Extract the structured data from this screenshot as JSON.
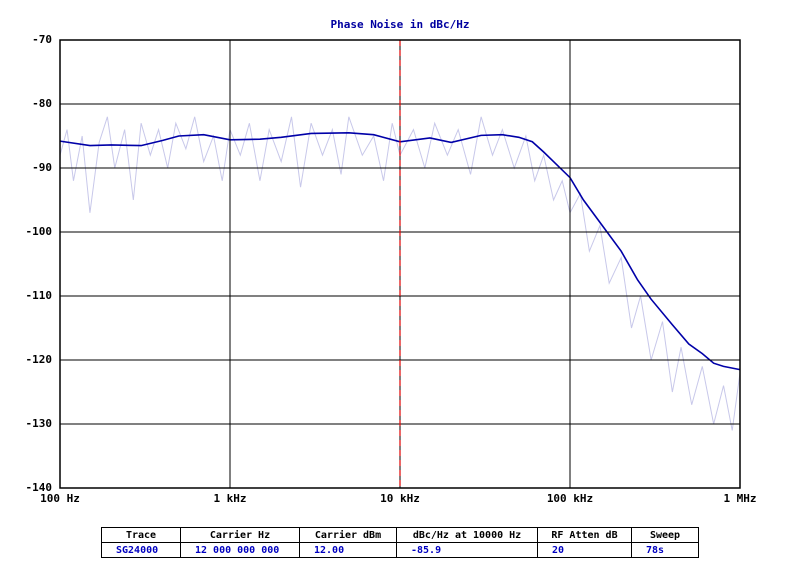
{
  "chart_data": {
    "type": "line",
    "title": "Phase Noise in dBc/Hz",
    "log_x": true,
    "grid": true,
    "xlim": [
      100,
      1000000
    ],
    "ylim": [
      -140,
      -70
    ],
    "xticks": [
      {
        "value": 100,
        "label": "100 Hz"
      },
      {
        "value": 1000,
        "label": "1 kHz"
      },
      {
        "value": 10000,
        "label": "10 kHz"
      },
      {
        "value": 100000,
        "label": "100 kHz"
      },
      {
        "value": 1000000,
        "label": "1 MHz"
      }
    ],
    "yticks": [
      -70,
      -80,
      -90,
      -100,
      -110,
      -120,
      -130,
      -140
    ],
    "marker_x": 10000,
    "marker_color": "#e00000",
    "series": [
      {
        "color": "#c8c8ea",
        "x": [
          100,
          110,
          120,
          135,
          150,
          170,
          190,
          210,
          240,
          270,
          300,
          340,
          380,
          430,
          480,
          550,
          620,
          700,
          800,
          900,
          1000,
          1150,
          1300,
          1500,
          1700,
          2000,
          2300,
          2600,
          3000,
          3500,
          4000,
          4500,
          5000,
          6000,
          7000,
          8000,
          9000,
          10000,
          12000,
          14000,
          16000,
          19000,
          22000,
          26000,
          30000,
          35000,
          40000,
          47000,
          55000,
          62000,
          70000,
          80000,
          90000,
          100000,
          115000,
          130000,
          150000,
          170000,
          200000,
          230000,
          260000,
          300000,
          350000,
          400000,
          450000,
          520000,
          600000,
          700000,
          800000,
          900000,
          1000000
        ],
        "values": [
          -88,
          -84,
          -92,
          -85,
          -97,
          -86,
          -82,
          -90,
          -84,
          -95,
          -83,
          -88,
          -84,
          -90,
          -83,
          -87,
          -82,
          -89,
          -85,
          -92,
          -84,
          -88,
          -83,
          -92,
          -84,
          -89,
          -82,
          -93,
          -83,
          -88,
          -84,
          -91,
          -82,
          -88,
          -85,
          -92,
          -83,
          -88,
          -84,
          -90,
          -83,
          -88,
          -84,
          -91,
          -82,
          -88,
          -84,
          -90,
          -85,
          -92,
          -88,
          -95,
          -92,
          -97,
          -94,
          -103,
          -99,
          -108,
          -104,
          -115,
          -110,
          -120,
          -114,
          -125,
          -118,
          -127,
          -121,
          -130,
          -124,
          -131,
          -122
        ]
      },
      {
        "color": "#0000a8",
        "x": [
          100,
          150,
          200,
          300,
          400,
          500,
          700,
          1000,
          1500,
          2000,
          3000,
          5000,
          7000,
          10000,
          15000,
          20000,
          30000,
          40000,
          50000,
          60000,
          70000,
          80000,
          100000,
          120000,
          150000,
          200000,
          250000,
          300000,
          400000,
          500000,
          600000,
          700000,
          800000,
          1000000
        ],
        "values": [
          -85.8,
          -86.5,
          -86.4,
          -86.5,
          -85.7,
          -85.0,
          -84.8,
          -85.6,
          -85.5,
          -85.2,
          -84.6,
          -84.5,
          -84.8,
          -85.9,
          -85.3,
          -86.0,
          -84.9,
          -84.8,
          -85.2,
          -85.9,
          -87.5,
          -89.0,
          -91.5,
          -95.0,
          -98.5,
          -103.0,
          -107.5,
          -110.5,
          -114.5,
          -117.5,
          -119.0,
          -120.5,
          -121.0,
          -121.5
        ]
      }
    ]
  },
  "table": {
    "headers": [
      "Trace",
      "Carrier Hz",
      "Carrier dBm",
      "dBc/Hz at 10000 Hz",
      "RF Atten dB",
      "Sweep"
    ],
    "rows": [
      [
        "SG24000",
        "12 000 000 000",
        "12.00",
        "-85.9",
        "20",
        "78s"
      ]
    ]
  }
}
